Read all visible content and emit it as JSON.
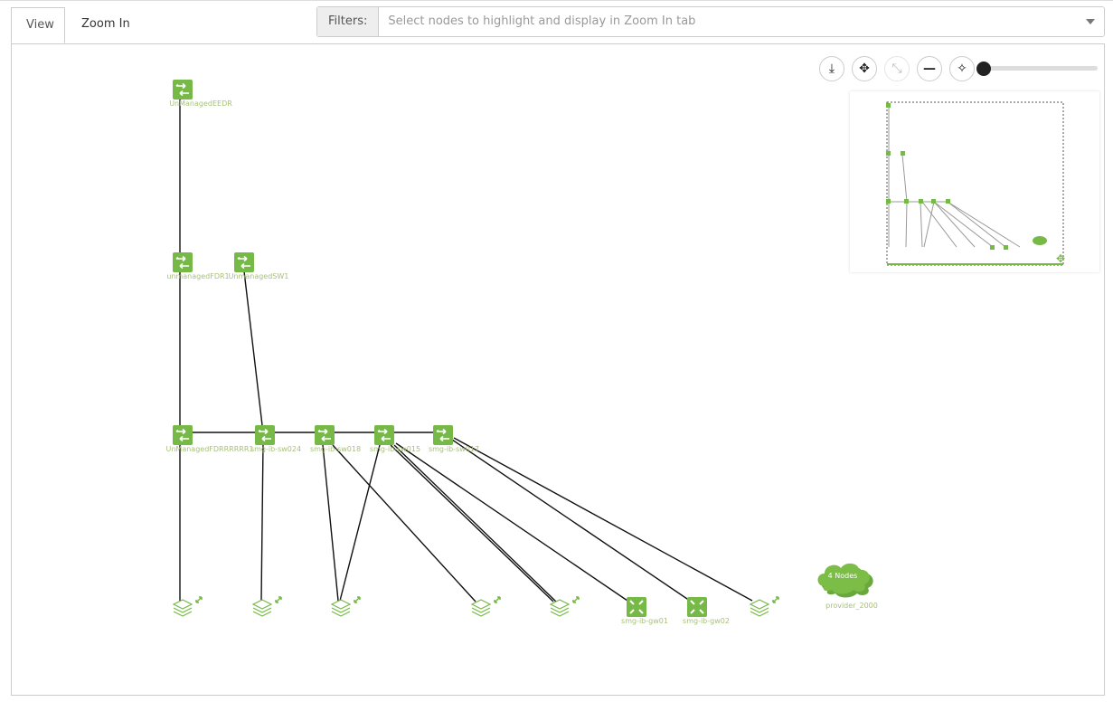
{
  "tabs": [
    {
      "label": "View",
      "active": true
    },
    {
      "label": "Zoom In",
      "active": false
    }
  ],
  "filters": {
    "label": "Filters:",
    "placeholder": "Select nodes to highlight and display in Zoom In tab"
  },
  "controls": [
    "download-icon",
    "move-icon",
    "collapse-icon",
    "minus-icon",
    "center-icon"
  ],
  "zoom_level": 0,
  "colors": {
    "node": "#76b947",
    "label": "#a8c07a",
    "edge": "#111111"
  },
  "nodes": {
    "eedr": "UnManagedEEDR",
    "fdr1": "unmanagedFDR1",
    "sw1": "UnmanagedSW1",
    "fdrr": "UnManagedFDRRRRRR1",
    "sw024": "smg-ib-sw024",
    "sw018": "smg-ib-sw018",
    "sw015": "smg-ib-sw015",
    "sw017": "smg-ib-sw017",
    "gw01": "smg-ib-gw01",
    "gw02": "smg-ib-gw02",
    "cloud": "4 Nodes",
    "provider": "provider_2000"
  }
}
